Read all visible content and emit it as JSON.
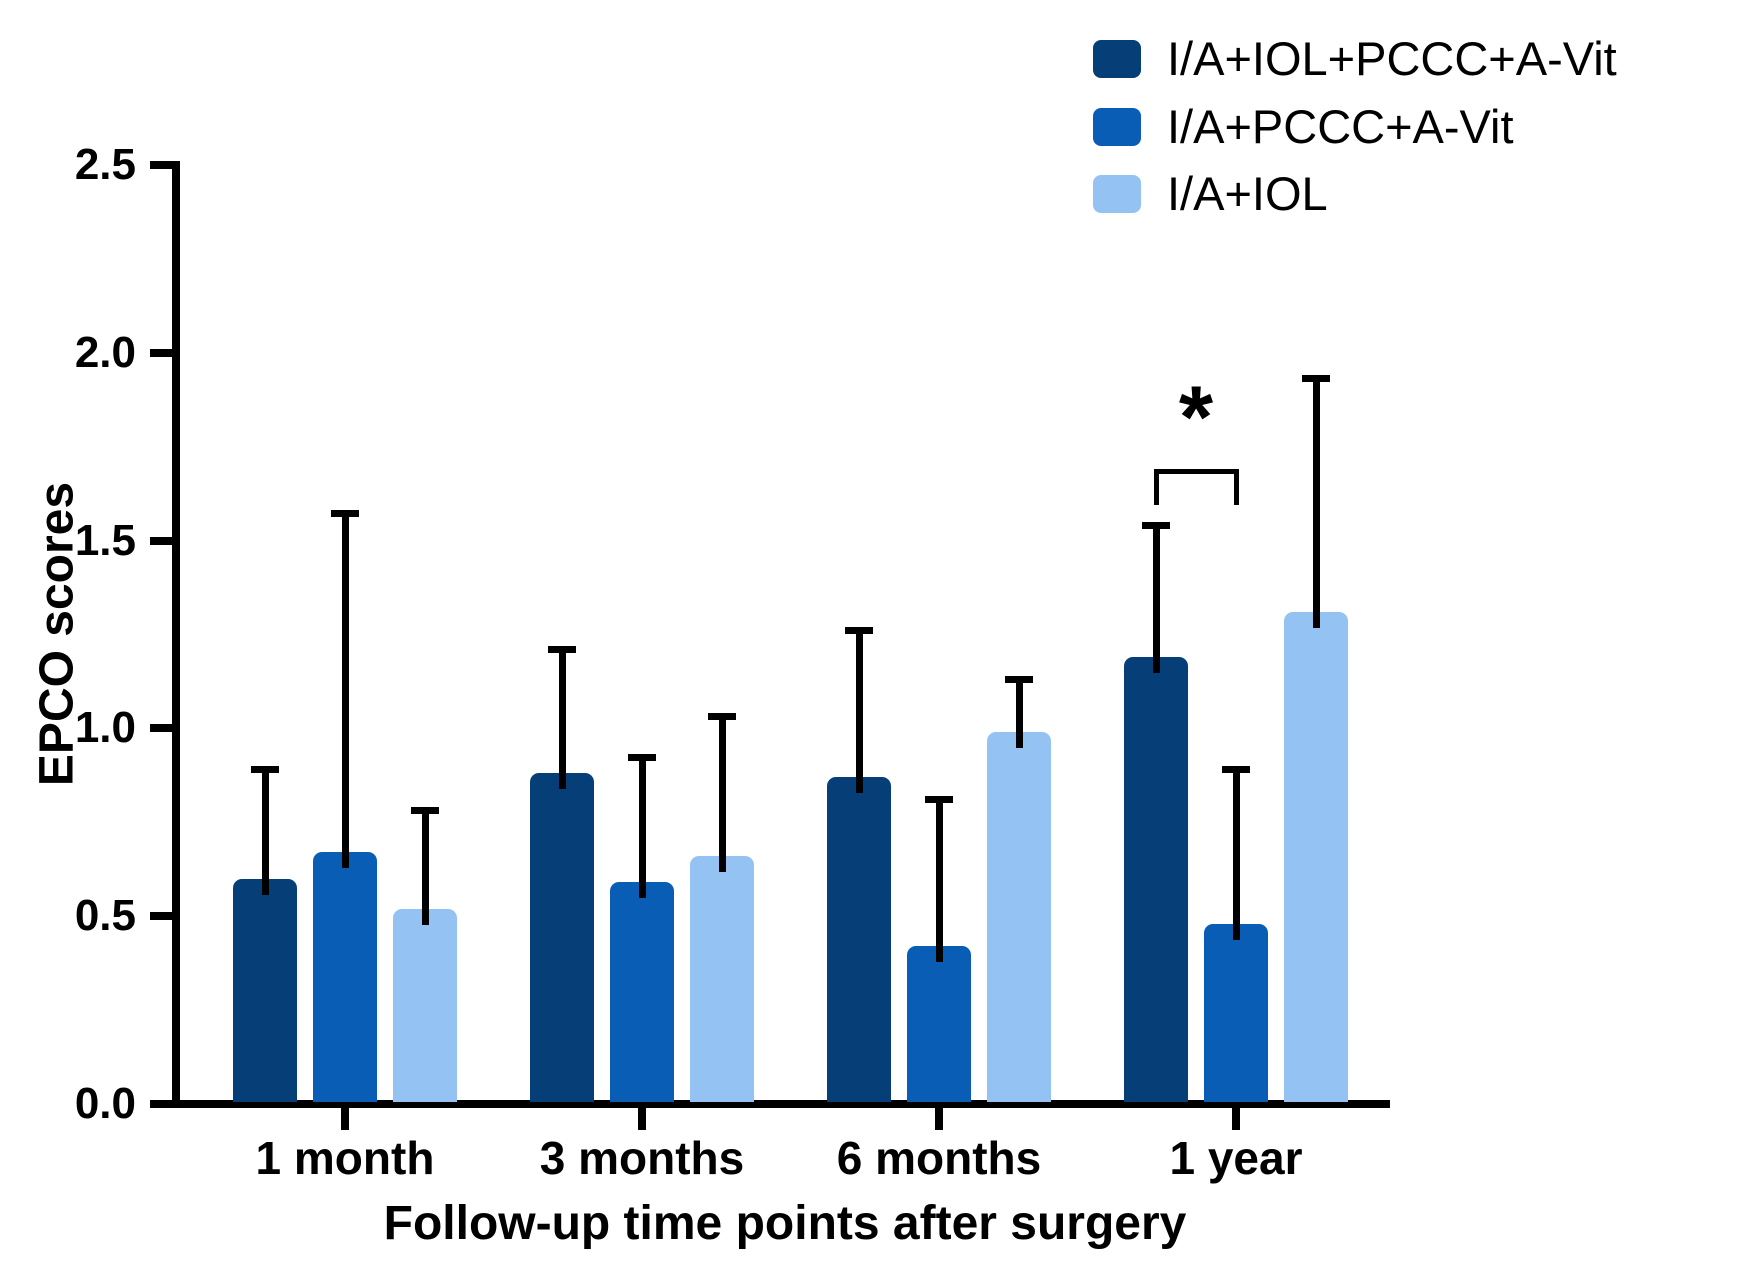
{
  "figure": {
    "background": "#ffffff",
    "text_color": "#000000"
  },
  "chart_data": {
    "type": "bar",
    "title": "",
    "xlabel": "Follow-up time points after surgery",
    "ylabel": "EPCO scores",
    "categories": [
      "1 month",
      "3 months",
      "6 months",
      "1 year"
    ],
    "series": [
      {
        "name": "I/A+IOL+PCCC+A-Vit",
        "color": "#063E78",
        "values": [
          0.6,
          0.88,
          0.87,
          1.19
        ],
        "sd_upper": [
          0.29,
          0.33,
          0.39,
          0.35
        ]
      },
      {
        "name": "I/A+PCCC+A-Vit",
        "color": "#0A5DB5",
        "values": [
          0.67,
          0.59,
          0.42,
          0.48
        ],
        "sd_upper": [
          0.9,
          0.33,
          0.39,
          0.41
        ]
      },
      {
        "name": "I/A+IOL",
        "color": "#94C2F3",
        "values": [
          0.52,
          0.66,
          0.99,
          1.31
        ],
        "sd_upper": [
          0.26,
          0.37,
          0.14,
          0.62
        ]
      }
    ],
    "ylim": [
      0.0,
      2.5
    ],
    "yticks": [
      "0.0",
      "0.5",
      "1.0",
      "1.5",
      "2.0",
      "2.5"
    ],
    "grid": false,
    "legend_position": "top-right",
    "error_bars": "upper standard deviation, black whiskers with caps",
    "significance": {
      "label": "*",
      "category": "1 year",
      "series_pair": [
        "I/A+IOL+PCCC+A-Vit",
        "I/A+PCCC+A-Vit"
      ],
      "bracket_value": 1.69
    }
  }
}
